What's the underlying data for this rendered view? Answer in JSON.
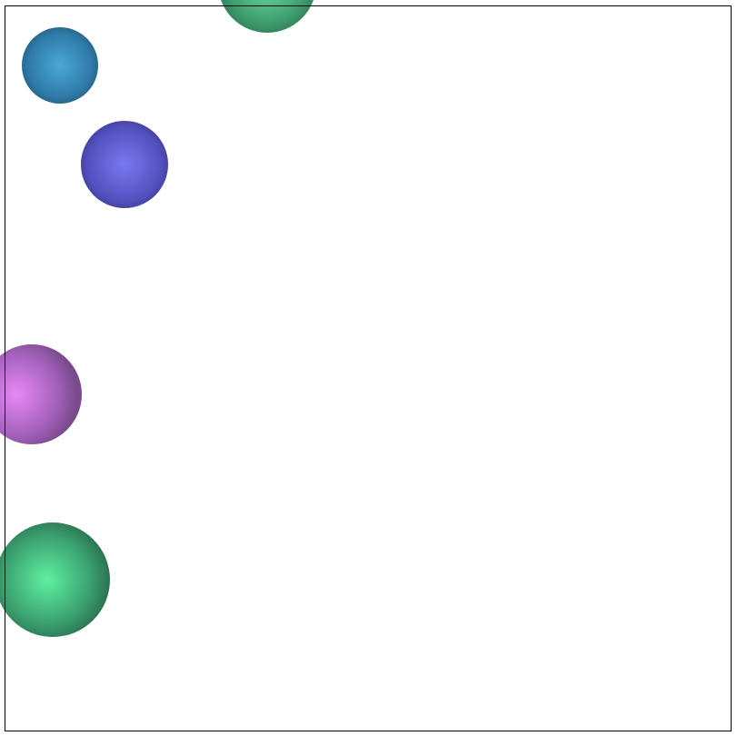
{
  "scene": {
    "background": "#ffffff",
    "frame_color": "#000000"
  },
  "blob_colors": {
    "pink": "#e070b8",
    "grey_pink": "#b09aa8",
    "tan": "#a89880",
    "olive": "#b0b048",
    "red": "#e84a38",
    "light_yellow": "#e0e8b0",
    "rust": "#b87058",
    "maroon": "#9a5060",
    "green": "#50e880",
    "grey": "#b8b8b8",
    "cyan": "#88e0e0",
    "teal": "#60b0a8",
    "navy": "#5058a0",
    "dark_olive": "#706830",
    "light_green": "#78e090",
    "purple": "#c040e8",
    "pale_teal": "#a0c8c0",
    "magenta": "#d05088",
    "brown": "#906040",
    "khaki": "#b0a080",
    "sky_blue": "#90d0f0",
    "lavender": "#e8c8e8",
    "violet": "#e080f0",
    "sea_green": "#50d890",
    "steel_blue": "#3890c0",
    "indigo": "#6a68e0"
  }
}
